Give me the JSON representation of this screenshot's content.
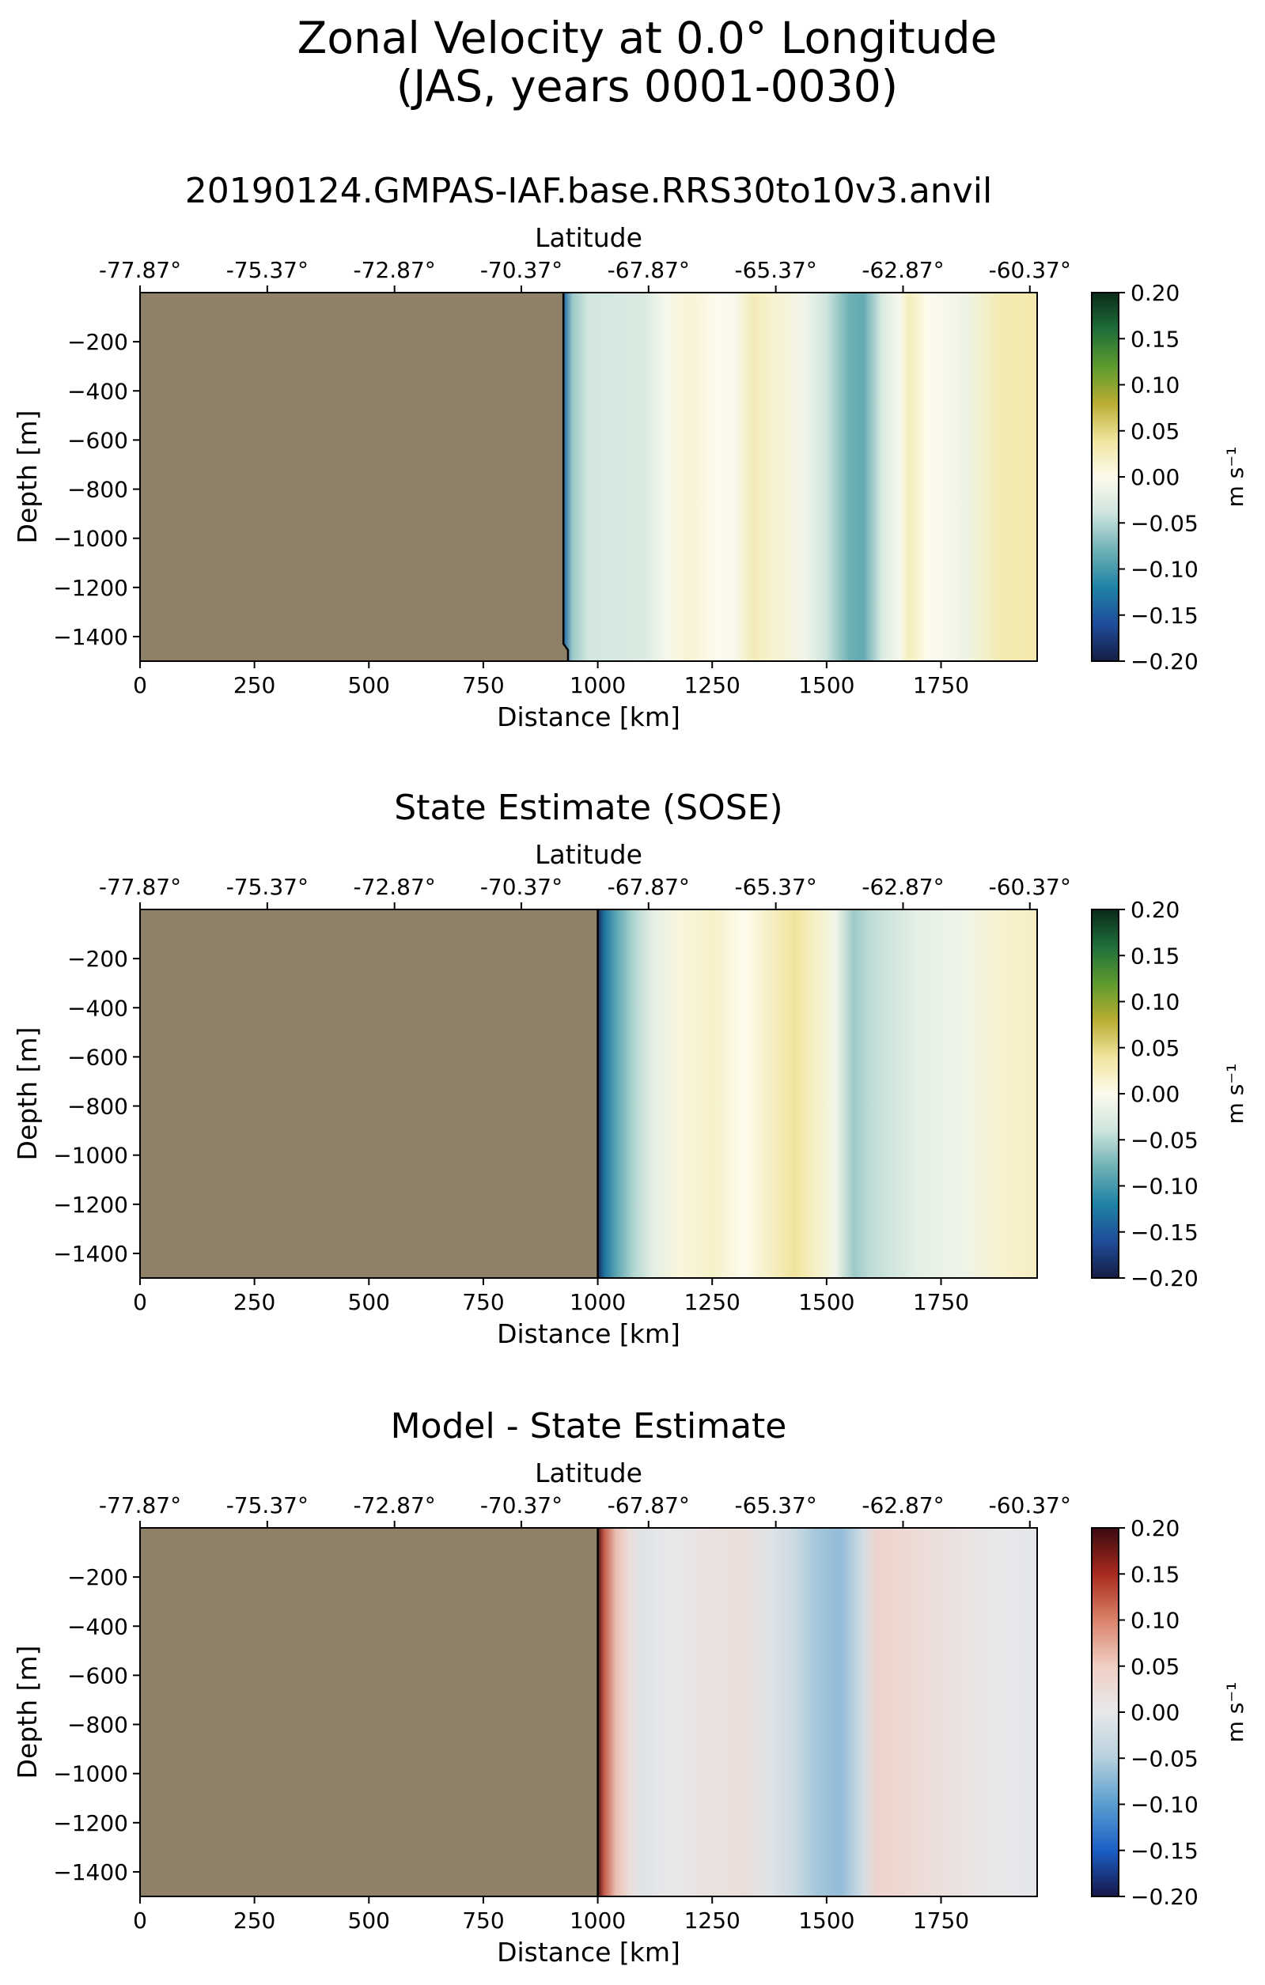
{
  "figure": {
    "title_line1": "Zonal Velocity at 0.0° Longitude",
    "title_line2": "(JAS, years 0001-0030)"
  },
  "chart_data": [
    {
      "type": "heatmap",
      "title": "20190124.GMPAS-IAF.base.RRS30to10v3.anvil",
      "xlabel": "Distance [km]",
      "ylabel": "Depth [m]",
      "top_xlabel": "Latitude",
      "xlim": [
        0,
        1960
      ],
      "ylim": [
        -1500,
        0
      ],
      "x_ticks": [
        0,
        250,
        500,
        750,
        1000,
        1250,
        1500,
        1750
      ],
      "x_tick_labels": [
        "0",
        "250",
        "500",
        "750",
        "1000",
        "1250",
        "1500",
        "1750"
      ],
      "y_ticks": [
        -200,
        -400,
        -600,
        -800,
        -1000,
        -1200,
        -1400
      ],
      "y_tick_labels": [
        "−200",
        "−400",
        "−600",
        "−800",
        "−1000",
        "−1200",
        "−1400"
      ],
      "top_ticks": [
        0,
        278,
        556,
        833,
        1111,
        1389,
        1667,
        1944
      ],
      "top_tick_labels": [
        "-77.87°",
        "-75.37°",
        "-72.87°",
        "-70.37°",
        "-67.87°",
        "-65.37°",
        "-62.87°",
        "-60.37°"
      ],
      "land_edge_km": 925,
      "land_edge_bottom_km": 935,
      "land_color": "#8f8168",
      "colormap": "balance-like",
      "colormap_stops": [
        "#151d44",
        "#1f4c9a",
        "#1f82a6",
        "#6db0b4",
        "#cde4dd",
        "#fdfbed",
        "#f0e49e",
        "#b9ad32",
        "#5c9a2e",
        "#1f6e3a",
        "#0a2a18"
      ],
      "colorbar": {
        "label": "m s⁻¹",
        "ticks": [
          0.2,
          0.15,
          0.1,
          0.05,
          0.0,
          -0.05,
          -0.1,
          -0.15,
          -0.2
        ],
        "tick_labels": [
          "0.20",
          "0.15",
          "0.10",
          "0.05",
          "0.00",
          "−0.05",
          "−0.10",
          "−0.15",
          "−0.20"
        ],
        "vmin": -0.2,
        "vmax": 0.2
      },
      "velocity_profile": {
        "x_km": [
          925,
          945,
          980,
          1100,
          1150,
          1200,
          1260,
          1300,
          1340,
          1380,
          1450,
          1500,
          1550,
          1580,
          1620,
          1660,
          1680,
          1720,
          1800,
          1880,
          1960
        ],
        "u": [
          -0.14,
          -0.06,
          -0.035,
          -0.03,
          -0.005,
          0.012,
          0.0,
          -0.005,
          0.028,
          0.015,
          -0.01,
          -0.04,
          -0.08,
          -0.085,
          -0.03,
          -0.005,
          0.025,
          0.0,
          -0.012,
          0.03,
          0.032
        ]
      }
    },
    {
      "type": "heatmap",
      "title": "State Estimate (SOSE)",
      "xlabel": "Distance [km]",
      "ylabel": "Depth [m]",
      "top_xlabel": "Latitude",
      "xlim": [
        0,
        1960
      ],
      "ylim": [
        -1500,
        0
      ],
      "x_ticks": [
        0,
        250,
        500,
        750,
        1000,
        1250,
        1500,
        1750
      ],
      "x_tick_labels": [
        "0",
        "250",
        "500",
        "750",
        "1000",
        "1250",
        "1500",
        "1750"
      ],
      "y_ticks": [
        -200,
        -400,
        -600,
        -800,
        -1000,
        -1200,
        -1400
      ],
      "y_tick_labels": [
        "−200",
        "−400",
        "−600",
        "−800",
        "−1000",
        "−1200",
        "−1400"
      ],
      "top_ticks": [
        0,
        278,
        556,
        833,
        1111,
        1389,
        1667,
        1944
      ],
      "top_tick_labels": [
        "-77.87°",
        "-75.37°",
        "-72.87°",
        "-70.37°",
        "-67.87°",
        "-65.37°",
        "-62.87°",
        "-60.37°"
      ],
      "land_edge_km": 1000,
      "land_edge_bottom_km": 1000,
      "land_color": "#8f8168",
      "colormap": "balance-like",
      "colormap_stops": [
        "#151d44",
        "#1f4c9a",
        "#1f82a6",
        "#6db0b4",
        "#cde4dd",
        "#fdfbed",
        "#f0e49e",
        "#b9ad32",
        "#5c9a2e",
        "#1f6e3a",
        "#0a2a18"
      ],
      "colorbar": {
        "label": "m s⁻¹",
        "ticks": [
          0.2,
          0.15,
          0.1,
          0.05,
          0.0,
          -0.05,
          -0.1,
          -0.15,
          -0.2
        ],
        "tick_labels": [
          "0.20",
          "0.15",
          "0.10",
          "0.05",
          "0.00",
          "−0.05",
          "−0.10",
          "−0.15",
          "−0.20"
        ],
        "vmin": -0.2,
        "vmax": 0.2
      },
      "velocity_profile": {
        "x_km": [
          1000,
          1015,
          1040,
          1080,
          1120,
          1180,
          1250,
          1320,
          1380,
          1430,
          1480,
          1520,
          1560,
          1600,
          1700,
          1800,
          1880,
          1960
        ],
        "u": [
          -0.19,
          -0.13,
          -0.09,
          -0.05,
          -0.02,
          0.008,
          0.018,
          0.0,
          0.022,
          0.04,
          0.018,
          -0.01,
          -0.06,
          -0.045,
          -0.02,
          -0.012,
          0.015,
          0.022
        ]
      }
    },
    {
      "type": "heatmap",
      "title": "Model - State Estimate",
      "xlabel": "Distance [km]",
      "ylabel": "Depth [m]",
      "top_xlabel": "Latitude",
      "xlim": [
        0,
        1960
      ],
      "ylim": [
        -1500,
        0
      ],
      "x_ticks": [
        0,
        250,
        500,
        750,
        1000,
        1250,
        1500,
        1750
      ],
      "x_tick_labels": [
        "0",
        "250",
        "500",
        "750",
        "1000",
        "1250",
        "1500",
        "1750"
      ],
      "y_ticks": [
        -200,
        -400,
        -600,
        -800,
        -1000,
        -1200,
        -1400
      ],
      "y_tick_labels": [
        "−200",
        "−400",
        "−600",
        "−800",
        "−1000",
        "−1200",
        "−1400"
      ],
      "top_ticks": [
        0,
        278,
        556,
        833,
        1111,
        1389,
        1667,
        1944
      ],
      "top_tick_labels": [
        "-77.87°",
        "-75.37°",
        "-72.87°",
        "-70.37°",
        "-67.87°",
        "-65.37°",
        "-62.87°",
        "-60.37°"
      ],
      "land_edge_km": 1000,
      "land_edge_bottom_km": 1000,
      "land_color": "#8f8168",
      "colormap": "balance-diff",
      "colormap_stops": [
        "#18174a",
        "#1a5fc4",
        "#5a9ed0",
        "#b6d0dd",
        "#e8e8ea",
        "#f0cfc4",
        "#d9826a",
        "#a82a1e",
        "#3a0a10"
      ],
      "colorbar": {
        "label": "m s⁻¹",
        "ticks": [
          0.2,
          0.15,
          0.1,
          0.05,
          0.0,
          -0.05,
          -0.1,
          -0.15,
          -0.2
        ],
        "tick_labels": [
          "0.20",
          "0.15",
          "0.10",
          "0.05",
          "0.00",
          "−0.05",
          "−0.10",
          "−0.15",
          "−0.20"
        ],
        "vmin": -0.2,
        "vmax": 0.2
      },
      "velocity_profile": {
        "x_km": [
          1000,
          1015,
          1040,
          1070,
          1100,
          1150,
          1250,
          1320,
          1380,
          1430,
          1480,
          1530,
          1580,
          1610,
          1650,
          1700,
          1800,
          1880,
          1960
        ],
        "u": [
          0.19,
          0.12,
          0.06,
          0.02,
          -0.01,
          0.0,
          0.015,
          0.02,
          -0.01,
          -0.03,
          -0.06,
          -0.07,
          -0.02,
          0.04,
          0.035,
          0.025,
          0.01,
          0.0,
          -0.005
        ]
      }
    }
  ]
}
